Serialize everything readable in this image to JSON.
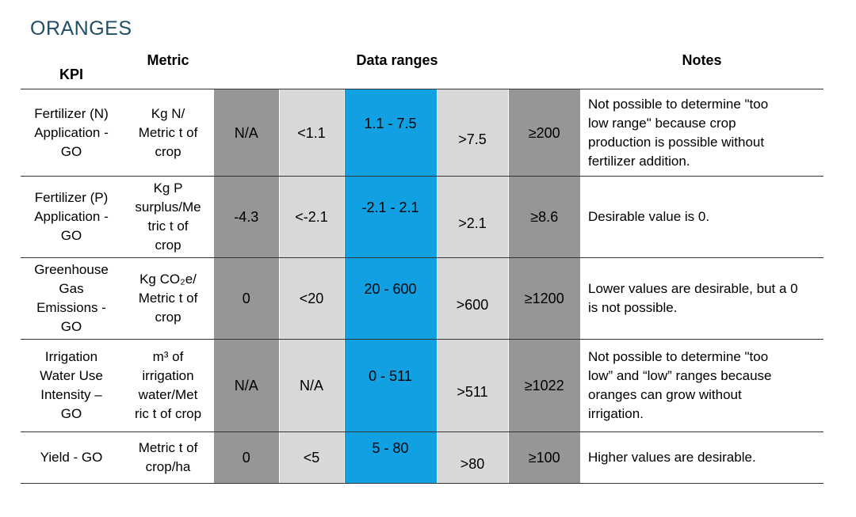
{
  "title": "ORANGES",
  "headers": {
    "kpi": "KPI",
    "metric": "Metric",
    "ranges": "Data ranges",
    "notes": "Notes"
  },
  "colors": {
    "dark_gray": "#969696",
    "light_gray": "#d8d8d8",
    "blue": "#11a0e2",
    "title": "#1f4e68"
  },
  "rows": [
    {
      "kpi": [
        "Fertilizer (N)",
        "Application -",
        "GO"
      ],
      "metric": [
        "Kg N/",
        "Metric t of",
        "crop"
      ],
      "ranges": [
        "N/A",
        "<1.1",
        "1.1 - 7.5",
        ">7.5",
        "≥200"
      ],
      "notes": [
        "Not possible to determine \"too",
        "low range\" because crop",
        "production is possible without",
        "fertilizer addition."
      ]
    },
    {
      "kpi": [
        "Fertilizer (P)",
        "Application -",
        "GO"
      ],
      "metric": [
        "Kg P",
        "surplus/Me",
        "tric t of",
        "crop"
      ],
      "ranges": [
        "-4.3",
        "<-2.1",
        "-2.1 - 2.1",
        ">2.1",
        "≥8.6"
      ],
      "notes": [
        "Desirable value is 0."
      ]
    },
    {
      "kpi": [
        "Greenhouse",
        "Gas",
        "Emissions -",
        "GO"
      ],
      "metric": [
        "Kg CO₂e/",
        "Metric t of",
        "crop"
      ],
      "ranges": [
        "0",
        "<20",
        "20 - 600",
        ">600",
        "≥1200"
      ],
      "notes": [
        "Lower values are desirable, but a 0",
        "is not possible."
      ]
    },
    {
      "kpi": [
        "Irrigation",
        "Water Use",
        "Intensity –",
        "GO"
      ],
      "metric": [
        "m³ of",
        "irrigation",
        "water/Met",
        "ric t of crop"
      ],
      "ranges": [
        "N/A",
        "N/A",
        "0 - 511",
        ">511",
        "≥1022"
      ],
      "notes": [
        "Not possible to determine \"too",
        "low” and “low” ranges because",
        "oranges can grow without",
        "irrigation."
      ]
    },
    {
      "kpi": [
        "Yield - GO"
      ],
      "metric": [
        "Metric t of",
        "crop/ha"
      ],
      "ranges": [
        "0",
        "<5",
        "5 - 80",
        ">80",
        "≥100"
      ],
      "notes": [
        "Higher values are desirable."
      ]
    }
  ]
}
